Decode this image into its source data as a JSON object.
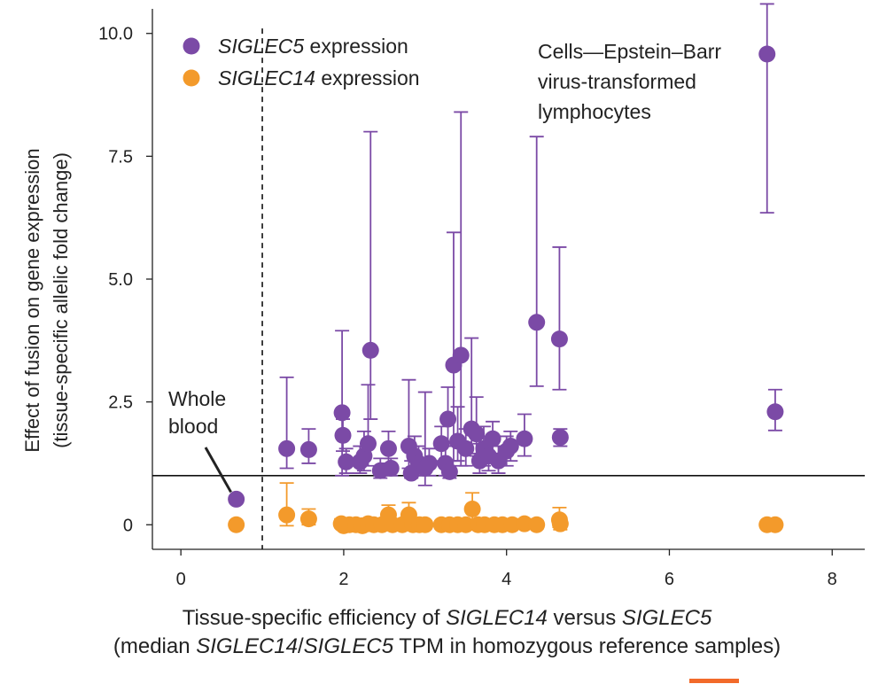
{
  "chart_data": {
    "type": "scatter",
    "xlabel": {
      "parts": [
        {
          "text": "Tissue-specific efficiency of ",
          "italic": false
        },
        {
          "text": "SIGLEC14",
          "italic": true
        },
        {
          "text": " versus ",
          "italic": false
        },
        {
          "text": "SIGLEC5",
          "italic": true
        }
      ]
    },
    "xlabel2": {
      "parts": [
        {
          "text": "(median ",
          "italic": false
        },
        {
          "text": "SIGLEC14",
          "italic": true
        },
        {
          "text": "/",
          "italic": false
        },
        {
          "text": "SIGLEC5",
          "italic": true
        },
        {
          "text": " TPM in homozygous reference samples)",
          "italic": false
        }
      ]
    },
    "ylabel": [
      "Effect of fusion on gene expression",
      "(tissue-specific allelic fold change)"
    ],
    "xlim": [
      -0.35,
      8.4
    ],
    "ylim": [
      -0.5,
      10.5
    ],
    "xticks": [
      0,
      2,
      4,
      6,
      8
    ],
    "xtick_labels": [
      "0",
      "2",
      "4",
      "6",
      "8"
    ],
    "yticks": [
      0,
      2.5,
      5,
      7.5,
      10
    ],
    "ytick_labels": [
      "0",
      "2.5",
      "5.0",
      "7.5",
      "10.0"
    ],
    "reference_hline": 1.0,
    "reference_vline": 1.0,
    "grid": false,
    "legend_position": "top-left",
    "annotations": {
      "whole_blood": [
        "Whole",
        "blood"
      ],
      "ebv_cells": [
        "Cells—Epstein–Barr",
        "virus-transformed",
        "lymphocytes"
      ]
    },
    "series": [
      {
        "name": "SIGLEC5",
        "legend_label": "SIGLEC5",
        "legend_suffix": " expression",
        "color": "#7b4aa6",
        "points": [
          {
            "x": 0.68,
            "y": 0.52
          },
          {
            "x": 1.3,
            "y": 1.55,
            "lo": 1.15,
            "hi": 3.0
          },
          {
            "x": 1.57,
            "y": 1.53,
            "lo": 1.25,
            "hi": 1.95
          },
          {
            "x": 1.98,
            "y": 2.28,
            "lo": 1.0,
            "hi": 3.95
          },
          {
            "x": 1.99,
            "y": 1.82,
            "lo": 1.5,
            "hi": 2.15
          },
          {
            "x": 2.03,
            "y": 1.28,
            "lo": 1.05,
            "hi": 1.55
          },
          {
            "x": 2.2,
            "y": 1.28,
            "lo": 1.05,
            "hi": 1.6
          },
          {
            "x": 2.25,
            "y": 1.4,
            "lo": 1.1,
            "hi": 1.9
          },
          {
            "x": 2.3,
            "y": 1.65,
            "lo": 1.2,
            "hi": 2.85
          },
          {
            "x": 2.33,
            "y": 3.55,
            "lo": 2.15,
            "hi": 8.0
          },
          {
            "x": 2.45,
            "y": 1.1,
            "lo": 0.95,
            "hi": 1.35
          },
          {
            "x": 2.55,
            "y": 1.55,
            "lo": 1.25,
            "hi": 1.9
          },
          {
            "x": 2.58,
            "y": 1.15,
            "lo": 1.0,
            "hi": 1.35
          },
          {
            "x": 2.8,
            "y": 1.6,
            "lo": 1.15,
            "hi": 2.95
          },
          {
            "x": 2.83,
            "y": 1.05,
            "lo": 0.95,
            "hi": 1.3
          },
          {
            "x": 2.87,
            "y": 1.4,
            "lo": 1.1,
            "hi": 1.8
          },
          {
            "x": 2.92,
            "y": 1.25,
            "lo": 1.0,
            "hi": 1.6
          },
          {
            "x": 3.0,
            "y": 1.15,
            "lo": 0.8,
            "hi": 2.7
          },
          {
            "x": 3.05,
            "y": 1.25,
            "lo": 1.0,
            "hi": 1.55
          },
          {
            "x": 3.2,
            "y": 1.65,
            "lo": 1.3,
            "hi": 2.0
          },
          {
            "x": 3.25,
            "y": 1.25,
            "lo": 1.0,
            "hi": 1.6
          },
          {
            "x": 3.28,
            "y": 2.15,
            "lo": 1.6,
            "hi": 2.8
          },
          {
            "x": 3.3,
            "y": 1.08,
            "lo": 0.95,
            "hi": 1.3
          },
          {
            "x": 3.35,
            "y": 3.25,
            "lo": 1.3,
            "hi": 5.95
          },
          {
            "x": 3.4,
            "y": 1.7,
            "lo": 1.3,
            "hi": 2.4
          },
          {
            "x": 3.44,
            "y": 3.45,
            "lo": 1.2,
            "hi": 8.4
          },
          {
            "x": 3.5,
            "y": 1.55,
            "lo": 1.2,
            "hi": 1.95
          },
          {
            "x": 3.57,
            "y": 1.95,
            "lo": 1.45,
            "hi": 3.8
          },
          {
            "x": 3.63,
            "y": 1.85,
            "lo": 1.4,
            "hi": 2.6
          },
          {
            "x": 3.67,
            "y": 1.3,
            "lo": 1.05,
            "hi": 1.65
          },
          {
            "x": 3.72,
            "y": 1.55,
            "lo": 1.2,
            "hi": 2.0
          },
          {
            "x": 3.78,
            "y": 1.4,
            "lo": 1.1,
            "hi": 1.8
          },
          {
            "x": 3.83,
            "y": 1.75,
            "lo": 1.35,
            "hi": 2.1
          },
          {
            "x": 3.9,
            "y": 1.3,
            "lo": 1.05,
            "hi": 1.6
          },
          {
            "x": 4.0,
            "y": 1.5,
            "lo": 1.2,
            "hi": 1.8
          },
          {
            "x": 4.05,
            "y": 1.6,
            "lo": 1.3,
            "hi": 1.9
          },
          {
            "x": 4.22,
            "y": 1.75,
            "lo": 1.4,
            "hi": 2.25
          },
          {
            "x": 4.37,
            "y": 4.12,
            "lo": 2.82,
            "hi": 7.9
          },
          {
            "x": 4.65,
            "y": 3.78,
            "lo": 2.75,
            "hi": 5.65
          },
          {
            "x": 4.66,
            "y": 1.78,
            "lo": 1.6,
            "hi": 1.95
          },
          {
            "x": 7.2,
            "y": 9.58,
            "lo": 6.35,
            "hi": 10.6
          },
          {
            "x": 7.3,
            "y": 2.3,
            "lo": 1.92,
            "hi": 2.75
          }
        ]
      },
      {
        "name": "SIGLEC14",
        "legend_label": "SIGLEC14",
        "legend_suffix": " expression",
        "color": "#f39a2b",
        "points": [
          {
            "x": 0.68,
            "y": 0.0
          },
          {
            "x": 1.3,
            "y": 0.2,
            "lo": -0.02,
            "hi": 0.85
          },
          {
            "x": 1.57,
            "y": 0.12,
            "lo": 0.0,
            "hi": 0.32
          },
          {
            "x": 1.97,
            "y": 0.02,
            "lo": -0.06,
            "hi": 0.12
          },
          {
            "x": 2.0,
            "y": -0.02,
            "lo": -0.1,
            "hi": 0.1
          },
          {
            "x": 2.07,
            "y": 0.0,
            "lo": -0.08,
            "hi": 0.1
          },
          {
            "x": 2.15,
            "y": 0.0,
            "lo": -0.08,
            "hi": 0.08
          },
          {
            "x": 2.23,
            "y": -0.02,
            "lo": -0.1,
            "hi": 0.08
          },
          {
            "x": 2.3,
            "y": 0.02,
            "lo": -0.06,
            "hi": 0.1
          },
          {
            "x": 2.37,
            "y": 0.0,
            "lo": -0.08,
            "hi": 0.1
          },
          {
            "x": 2.47,
            "y": 0.0,
            "lo": -0.08,
            "hi": 0.08
          },
          {
            "x": 2.55,
            "y": 0.2,
            "lo": -0.05,
            "hi": 0.4
          },
          {
            "x": 2.6,
            "y": 0.0,
            "lo": -0.08,
            "hi": 0.1
          },
          {
            "x": 2.72,
            "y": 0.0,
            "lo": -0.08,
            "hi": 0.08
          },
          {
            "x": 2.8,
            "y": 0.2,
            "lo": -0.05,
            "hi": 0.45
          },
          {
            "x": 2.85,
            "y": 0.0,
            "lo": -0.08,
            "hi": 0.08
          },
          {
            "x": 2.93,
            "y": 0.0,
            "lo": -0.08,
            "hi": 0.08
          },
          {
            "x": 3.0,
            "y": 0.0,
            "lo": -0.08,
            "hi": 0.08
          },
          {
            "x": 3.2,
            "y": 0.0,
            "lo": -0.08,
            "hi": 0.08
          },
          {
            "x": 3.3,
            "y": 0.0,
            "lo": -0.08,
            "hi": 0.08
          },
          {
            "x": 3.4,
            "y": 0.0,
            "lo": -0.08,
            "hi": 0.08
          },
          {
            "x": 3.5,
            "y": 0.0,
            "lo": -0.08,
            "hi": 0.08
          },
          {
            "x": 3.58,
            "y": 0.32,
            "lo": 0.05,
            "hi": 0.65
          },
          {
            "x": 3.65,
            "y": 0.0,
            "lo": -0.08,
            "hi": 0.1
          },
          {
            "x": 3.73,
            "y": 0.0,
            "lo": -0.08,
            "hi": 0.08
          },
          {
            "x": 3.85,
            "y": 0.0,
            "lo": -0.08,
            "hi": 0.08
          },
          {
            "x": 3.95,
            "y": 0.0,
            "lo": -0.08,
            "hi": 0.08
          },
          {
            "x": 4.07,
            "y": 0.0,
            "lo": -0.08,
            "hi": 0.08
          },
          {
            "x": 4.22,
            "y": 0.02,
            "lo": -0.06,
            "hi": 0.12
          },
          {
            "x": 4.37,
            "y": 0.0,
            "lo": -0.08,
            "hi": 0.08
          },
          {
            "x": 4.65,
            "y": 0.1,
            "lo": -0.05,
            "hi": 0.35
          },
          {
            "x": 4.66,
            "y": 0.02,
            "lo": -0.1,
            "hi": 0.15
          },
          {
            "x": 7.2,
            "y": 0.0
          },
          {
            "x": 7.3,
            "y": 0.0
          }
        ]
      }
    ]
  },
  "decoration": {
    "accent_color": "#f26a2a"
  }
}
